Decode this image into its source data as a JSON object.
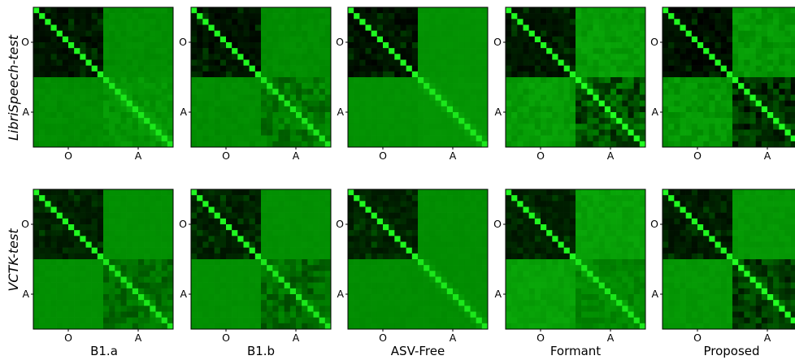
{
  "chart_data": {
    "type": "heatmap",
    "description_of_values": "similarity matrices, values 0 (black) to 1 (bright green)",
    "size": 24,
    "row_labels": [
      "LibriSpeech-test",
      "VCTK-test"
    ],
    "column_labels": [
      "B1.a",
      "B1.b",
      "ASV-Free",
      "Formant",
      "Proposed"
    ],
    "tick_labels": {
      "x": [
        "O",
        "A"
      ],
      "y": [
        "O",
        "A"
      ]
    },
    "colormap": {
      "low": "#000000",
      "mid": "#008800",
      "high": "#22ff22"
    },
    "blocks": [
      [
        {
          "oo": 0.07,
          "oa": 0.52,
          "aa": 0.55,
          "diag_aa": 0.62,
          "noise_aa": 0.05,
          "noise_oa": 0.02,
          "seed": 11
        },
        {
          "oo": 0.06,
          "oa": 0.52,
          "aa": 0.44,
          "diag_aa": 0.65,
          "noise_aa": 0.12,
          "noise_oa": 0.02,
          "seed": 12
        },
        {
          "oo": 0.06,
          "oa": 0.54,
          "aa": 0.55,
          "diag_aa": 0.55,
          "noise_aa": 0.01,
          "noise_oa": 0.01,
          "seed": 13
        },
        {
          "oo": 0.08,
          "oa": 0.58,
          "aa": 0.3,
          "diag_aa": 0.95,
          "noise_aa": 0.2,
          "noise_oa": 0.05,
          "seed": 14
        },
        {
          "oo": 0.05,
          "oa": 0.56,
          "aa": 0.18,
          "diag_aa": 0.95,
          "noise_aa": 0.16,
          "noise_oa": 0.06,
          "seed": 15
        }
      ],
      [
        {
          "oo": 0.12,
          "oa": 0.53,
          "aa": 0.4,
          "diag_aa": 0.55,
          "noise_aa": 0.1,
          "noise_oa": 0.01,
          "seed": 21
        },
        {
          "oo": 0.12,
          "oa": 0.53,
          "aa": 0.38,
          "diag_aa": 0.58,
          "noise_aa": 0.12,
          "noise_oa": 0.01,
          "seed": 22
        },
        {
          "oo": 0.13,
          "oa": 0.52,
          "aa": 0.52,
          "diag_aa": 0.53,
          "noise_aa": 0.01,
          "noise_oa": 0.01,
          "seed": 23
        },
        {
          "oo": 0.12,
          "oa": 0.6,
          "aa": 0.5,
          "diag_aa": 0.7,
          "noise_aa": 0.06,
          "noise_oa": 0.03,
          "seed": 24
        },
        {
          "oo": 0.1,
          "oa": 0.56,
          "aa": 0.22,
          "diag_aa": 0.95,
          "noise_aa": 0.14,
          "noise_oa": 0.02,
          "seed": 25
        }
      ]
    ]
  }
}
